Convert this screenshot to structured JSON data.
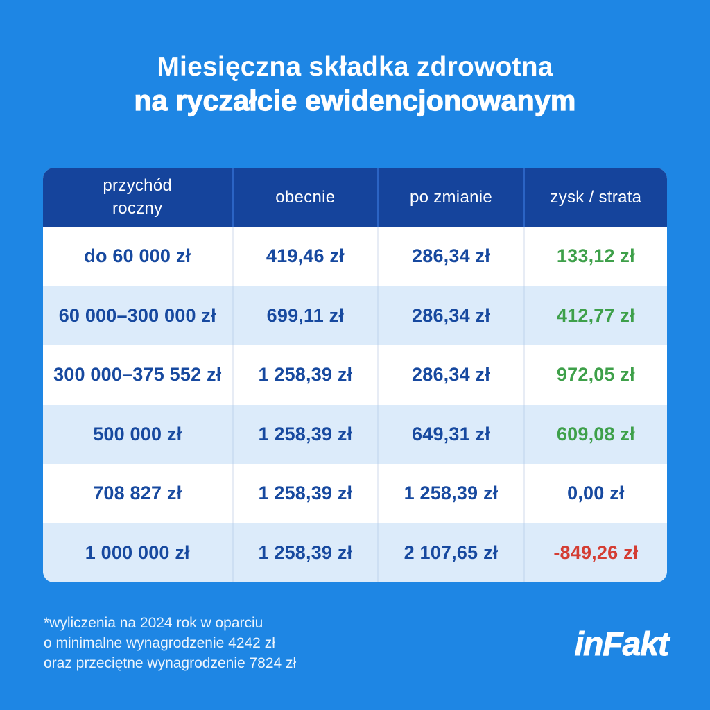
{
  "title": {
    "line1": "Miesięczna składka zdrowotna",
    "line2": "na ryczałcie ewidencjonowanym"
  },
  "table": {
    "headers": [
      "przychód roczny",
      "obecnie",
      "po zmianie",
      "zysk / strata"
    ],
    "rows": [
      {
        "income": "do 60 000 zł",
        "current": "419,46 zł",
        "after": "286,34 zł",
        "diff": "133,12 zł",
        "diff_color": "green"
      },
      {
        "income": "60 000–300 000 zł",
        "current": "699,11 zł",
        "after": "286,34 zł",
        "diff": "412,77 zł",
        "diff_color": "green"
      },
      {
        "income": "300 000–375 552 zł",
        "current": "1 258,39 zł",
        "after": "286,34 zł",
        "diff": "972,05 zł",
        "diff_color": "green"
      },
      {
        "income": "500 000 zł",
        "current": "1 258,39 zł",
        "after": "649,31 zł",
        "diff": "609,08 zł",
        "diff_color": "green"
      },
      {
        "income": "708 827 zł",
        "current": "1 258,39 zł",
        "after": "1 258,39 zł",
        "diff": "0,00 zł",
        "diff_color": "navy"
      },
      {
        "income": "1 000 000 zł",
        "current": "1 258,39 zł",
        "after": "2 107,65 zł",
        "diff": "-849,26 zł",
        "diff_color": "red"
      }
    ]
  },
  "footnote": {
    "line1": "*wyliczenia na 2024 rok w oparciu",
    "line2": "o minimalne wynagrodzenie 4242 zł",
    "line3": "oraz przeciętne wynagrodzenie 7824 zł"
  },
  "logo": {
    "text": "inFakt"
  },
  "colors": {
    "background": "#1E86E4",
    "header_bg": "#15449C",
    "navy_text": "#17499F",
    "row_alt": "#DCEBFA",
    "green": "#3EA04A",
    "red": "#D43D33"
  }
}
